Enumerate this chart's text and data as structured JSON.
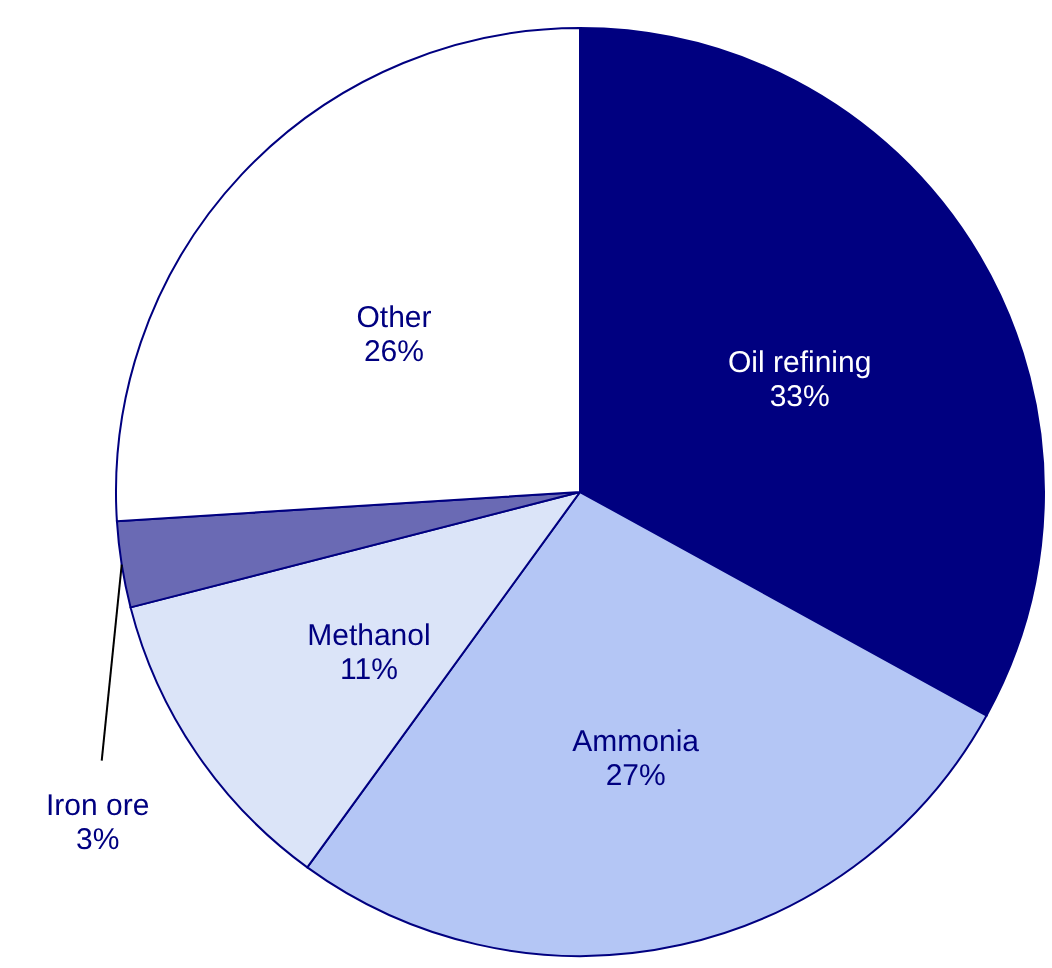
{
  "chart_data": {
    "type": "pie",
    "categories": [
      "Oil refining",
      "Ammonia",
      "Methanol",
      "Iron ore",
      "Other"
    ],
    "values": [
      33,
      27,
      11,
      3,
      26
    ],
    "colors": [
      "#000080",
      "#b4c6f5",
      "#dbe4f8",
      "#6a6ab4",
      "#ffffff"
    ],
    "value_labels": [
      "33%",
      "27%",
      "11%",
      "3%",
      "26%"
    ]
  }
}
